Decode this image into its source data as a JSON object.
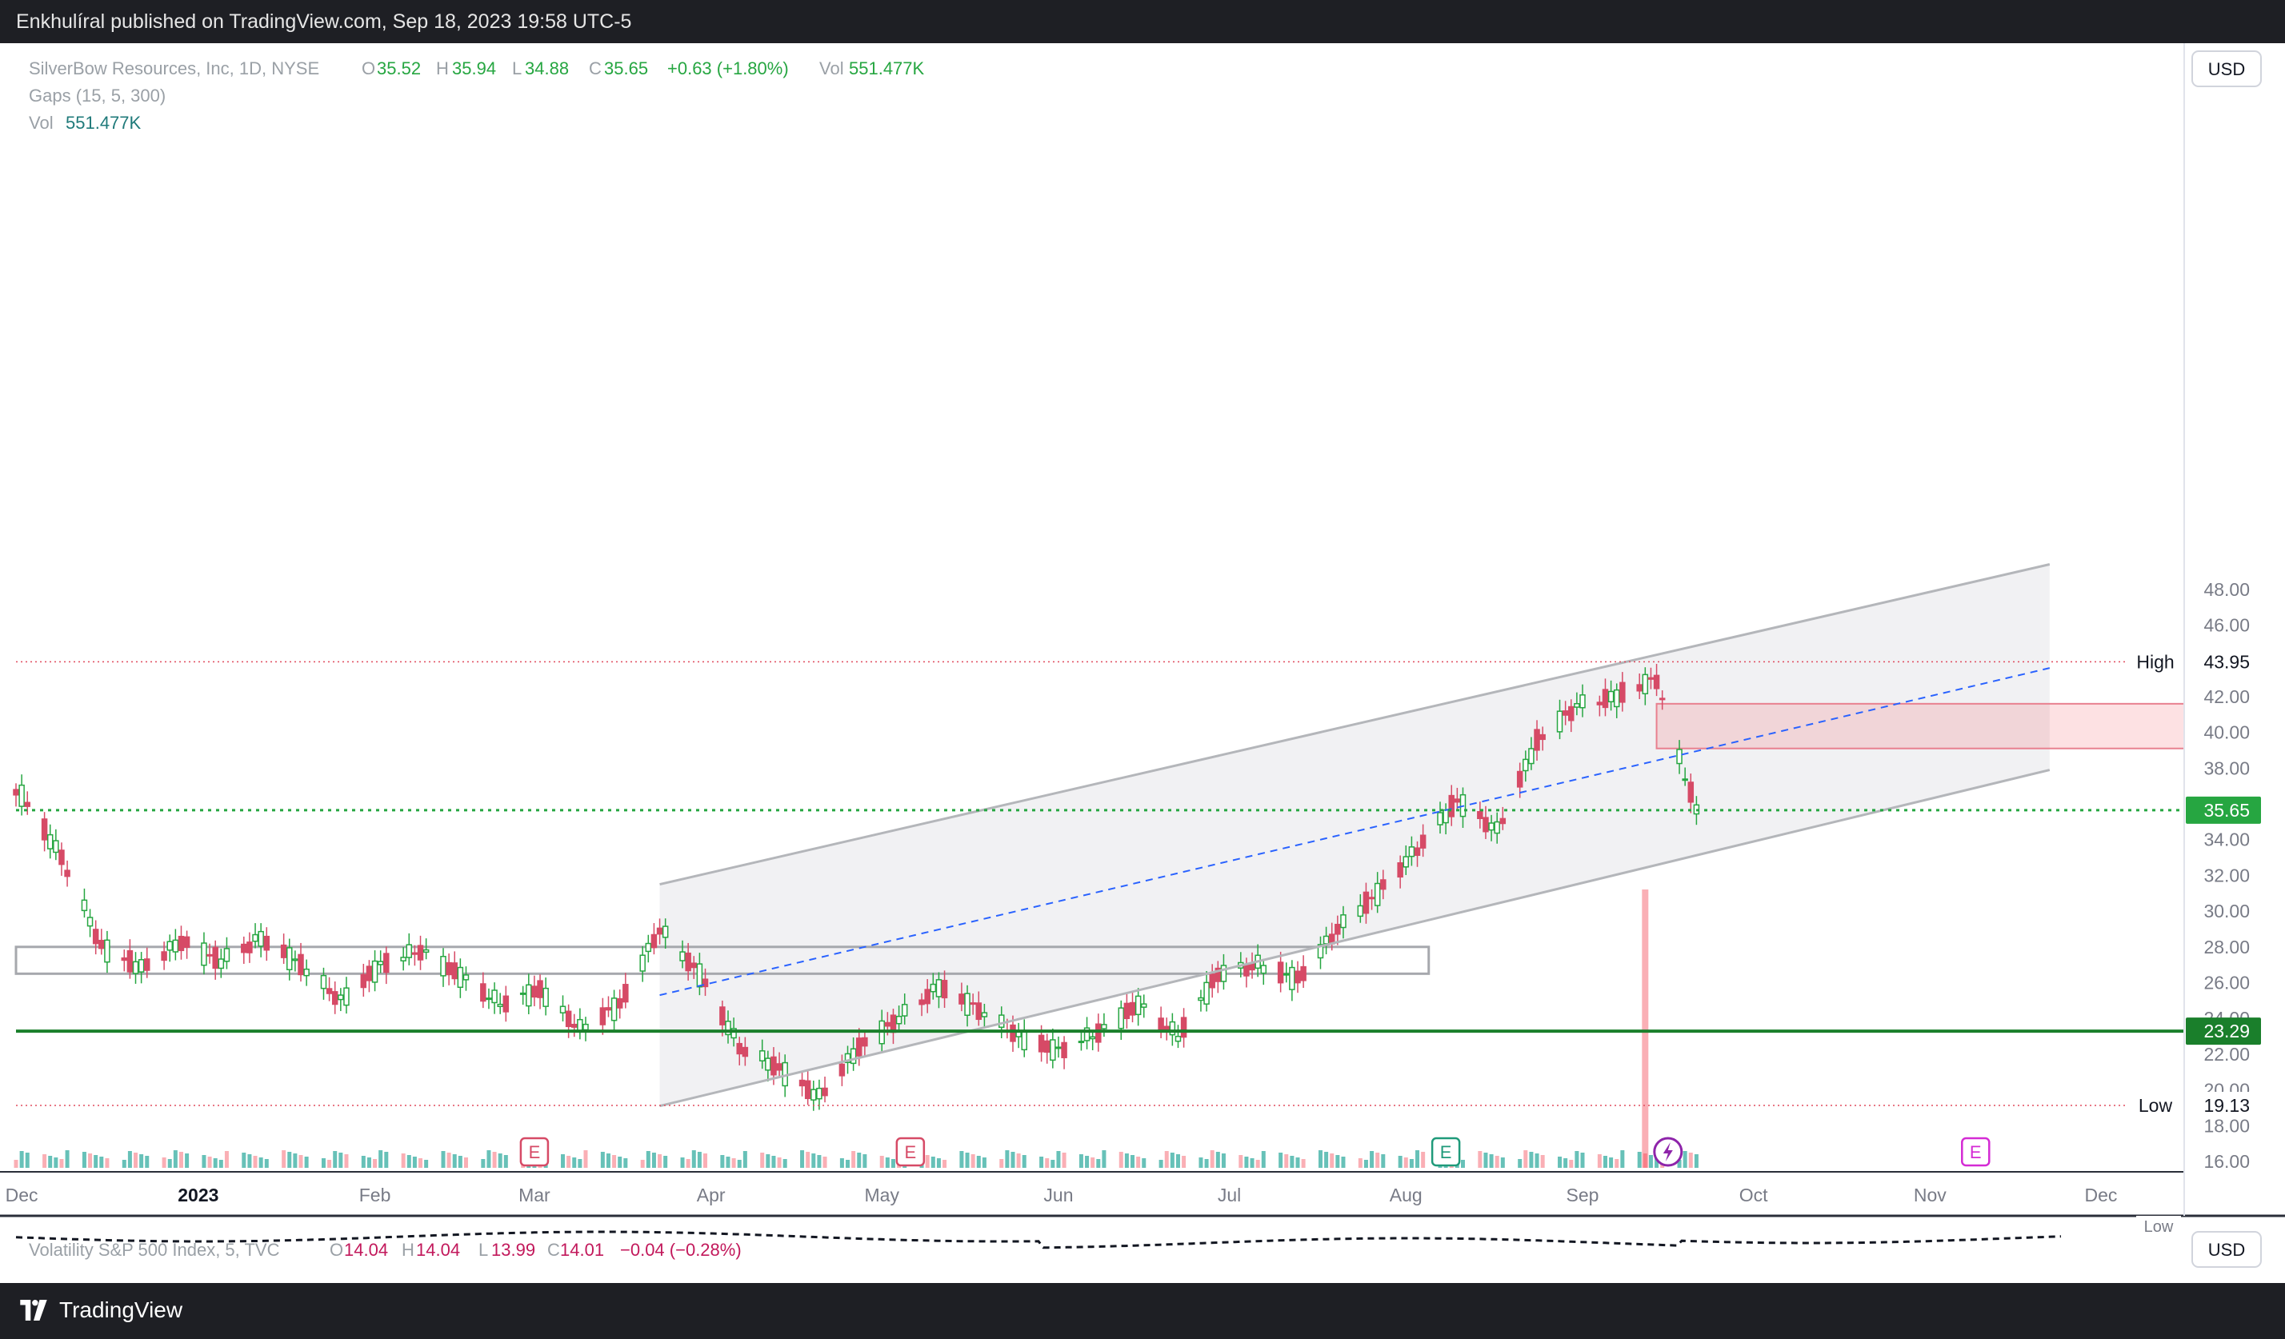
{
  "header": {
    "publisher_text": "Enkhulíral published on TradingView.com, Sep 18, 2023 19:58 UTC-5"
  },
  "legend": {
    "symbol": "SilverBow Resources, Inc, 1D, NYSE",
    "o_label": "O",
    "o": "35.52",
    "h_label": "H",
    "h": "35.94",
    "l_label": "L",
    "l": "34.88",
    "c_label": "C",
    "c": "35.65",
    "change": "+0.63 (+1.80%)",
    "vol_label": "Vol",
    "vol": "551.477K",
    "gaps": "Gaps (15, 5, 300)",
    "vol2_label": "Vol",
    "vol2": "551.477K"
  },
  "currency": "USD",
  "currency2": "USD",
  "markers": {
    "high_label": "High",
    "high": "43.95",
    "low_label": "Low",
    "low": "19.13",
    "last": "35.65",
    "support": "23.29"
  },
  "earnings_marker": "E",
  "vix": {
    "name": "Volatility S&P 500 Index, 5, TVC",
    "o_label": "O",
    "o": "14.04",
    "h_label": "H",
    "h": "14.04",
    "l_label": "L",
    "l": "13.99",
    "c_label": "C",
    "c": "14.01",
    "change": "−0.04 (−0.28%)",
    "low_label": "Low"
  },
  "brand": "TradingView",
  "colors": {
    "up": "#26a641",
    "down": "#d64a66",
    "bg": "#ffffff",
    "channel": "#b4b6ba",
    "dashed": "#2962ff",
    "support": "#1a7f2b"
  },
  "chart_data": {
    "type": "candlestick",
    "title": "SilverBow Resources, Inc, 1D, NYSE",
    "y_axis_ticks": [
      16,
      18,
      20,
      22,
      24,
      26,
      28,
      30,
      32,
      34,
      36,
      38,
      40,
      42,
      44,
      46,
      48
    ],
    "ylim": [
      15.6,
      49.5
    ],
    "x_axis_labels": [
      "Dec",
      "2023",
      "Feb",
      "Mar",
      "Apr",
      "May",
      "Jun",
      "Jul",
      "Aug",
      "Sep",
      "Oct",
      "Nov",
      "Dec"
    ],
    "close_series": [
      {
        "date": "2022-12-01",
        "close": 36.5
      },
      {
        "date": "2022-12-08",
        "close": 33.0
      },
      {
        "date": "2022-12-15",
        "close": 28.0
      },
      {
        "date": "2022-12-22",
        "close": 26.8
      },
      {
        "date": "2022-12-29",
        "close": 28.3
      },
      {
        "date": "2023-01-05",
        "close": 27.2
      },
      {
        "date": "2023-01-12",
        "close": 28.5
      },
      {
        "date": "2023-01-19",
        "close": 27.0
      },
      {
        "date": "2023-01-26",
        "close": 25.0
      },
      {
        "date": "2023-02-02",
        "close": 27.0
      },
      {
        "date": "2023-02-09",
        "close": 27.8
      },
      {
        "date": "2023-02-16",
        "close": 26.4
      },
      {
        "date": "2023-02-23",
        "close": 24.8
      },
      {
        "date": "2023-03-02",
        "close": 25.6
      },
      {
        "date": "2023-03-09",
        "close": 23.4
      },
      {
        "date": "2023-03-16",
        "close": 24.8
      },
      {
        "date": "2023-03-23",
        "close": 29.0
      },
      {
        "date": "2023-03-30",
        "close": 26.5
      },
      {
        "date": "2023-04-06",
        "close": 22.4
      },
      {
        "date": "2023-04-13",
        "close": 21.2
      },
      {
        "date": "2023-04-20",
        "close": 19.6
      },
      {
        "date": "2023-04-27",
        "close": 22.4
      },
      {
        "date": "2023-05-04",
        "close": 24.0
      },
      {
        "date": "2023-05-11",
        "close": 25.8
      },
      {
        "date": "2023-05-18",
        "close": 24.5
      },
      {
        "date": "2023-05-25",
        "close": 23.0
      },
      {
        "date": "2023-06-01",
        "close": 22.2
      },
      {
        "date": "2023-06-08",
        "close": 23.2
      },
      {
        "date": "2023-06-15",
        "close": 24.8
      },
      {
        "date": "2023-06-22",
        "close": 23.0
      },
      {
        "date": "2023-06-29",
        "close": 26.5
      },
      {
        "date": "2023-07-06",
        "close": 27.0
      },
      {
        "date": "2023-07-13",
        "close": 26.2
      },
      {
        "date": "2023-07-20",
        "close": 29.0
      },
      {
        "date": "2023-07-27",
        "close": 31.0
      },
      {
        "date": "2023-08-03",
        "close": 33.5
      },
      {
        "date": "2023-08-10",
        "close": 36.2
      },
      {
        "date": "2023-08-17",
        "close": 34.5
      },
      {
        "date": "2023-08-24",
        "close": 39.5
      },
      {
        "date": "2023-08-31",
        "close": 41.5
      },
      {
        "date": "2023-09-07",
        "close": 42.0
      },
      {
        "date": "2023-09-14",
        "close": 43.0
      },
      {
        "date": "2023-09-18",
        "close": 38.5
      },
      {
        "date": "2023-09-21",
        "close": 35.65
      }
    ],
    "volume_spike": {
      "date": "2023-09-12",
      "volume_rel": 1.0
    },
    "overlays": {
      "rising_channel": {
        "upper": [
          [
            "2023-03-23",
            31.5
          ],
          [
            "2023-11-22",
            49.4
          ]
        ],
        "lower": [
          [
            "2023-03-23",
            19.1
          ],
          [
            "2023-11-22",
            37.9
          ]
        ]
      },
      "median_dashed": [
        [
          "2023-03-23",
          25.3
        ],
        [
          "2023-11-22",
          43.6
        ]
      ],
      "gap_zone": {
        "from": "2023-09-14",
        "low": 39.1,
        "high": 41.6
      },
      "box_zone": {
        "to": "2023-08-05",
        "low": 26.5,
        "high": 28.0
      },
      "support_line": 23.29,
      "high_line": 43.95,
      "low_line": 19.13,
      "last_price_line": 35.65
    }
  }
}
